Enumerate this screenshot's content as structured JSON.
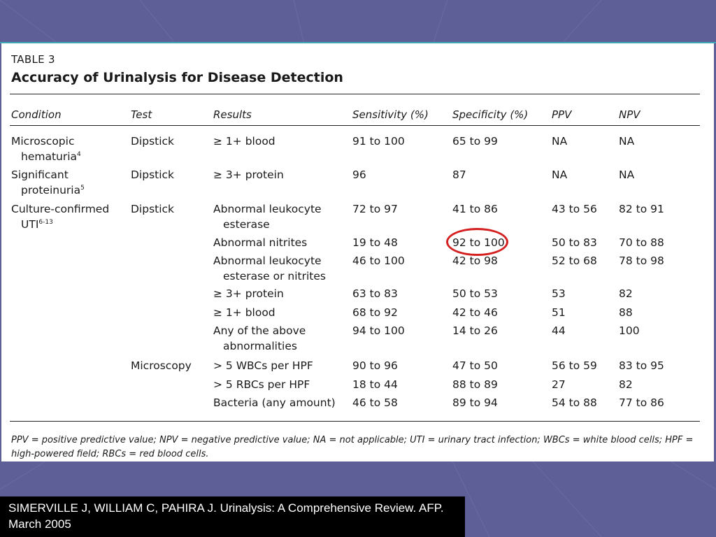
{
  "table": {
    "label": "TABLE 3",
    "title": "Accuracy of Urinalysis for Disease Detection",
    "headers": {
      "condition": "Condition",
      "test": "Test",
      "results": "Results",
      "sensitivity": "Sensitivity (%)",
      "specificity": "Specificity (%)",
      "ppv": "PPV",
      "npv": "NPV"
    },
    "rows": [
      {
        "condition": [
          "Microscopic",
          "hematuria"
        ],
        "condition_ref": "4",
        "test": "Dipstick",
        "results": [
          "≥ 1+ blood"
        ],
        "sensitivity": "91 to 100",
        "specificity": "65 to 99",
        "ppv": "NA",
        "npv": "NA"
      },
      {
        "condition": [
          "Significant",
          "proteinuria"
        ],
        "condition_ref": "5",
        "test": "Dipstick",
        "results": [
          "≥ 3+ protein"
        ],
        "sensitivity": "96",
        "specificity": "87",
        "ppv": "NA",
        "npv": "NA"
      },
      {
        "condition": [
          "Culture-confirmed",
          "UTI"
        ],
        "condition_ref": "6-13",
        "test": "Dipstick",
        "results": [
          "Abnormal leukocyte",
          "esterase"
        ],
        "sensitivity": "72 to 97",
        "specificity": "41 to 86",
        "ppv": "43 to 56",
        "npv": "82 to 91"
      },
      {
        "condition": [],
        "test": "",
        "results": [
          "Abnormal nitrites"
        ],
        "sensitivity": "19 to 48",
        "specificity": "92 to 100",
        "ppv": "50 to 83",
        "npv": "70 to 88"
      },
      {
        "condition": [],
        "test": "",
        "results": [
          "Abnormal leukocyte",
          "esterase or nitrites"
        ],
        "sensitivity": "46 to 100",
        "specificity": "42 to 98",
        "ppv": "52 to 68",
        "npv": "78 to 98"
      },
      {
        "condition": [],
        "test": "",
        "results": [
          "≥ 3+ protein"
        ],
        "sensitivity": "63 to 83",
        "specificity": "50 to 53",
        "ppv": "53",
        "npv": "82"
      },
      {
        "condition": [],
        "test": "",
        "results": [
          "≥ 1+ blood"
        ],
        "sensitivity": "68 to 92",
        "specificity": "42 to 46",
        "ppv": "51",
        "npv": "88"
      },
      {
        "condition": [],
        "test": "",
        "results": [
          "Any of the above",
          "abnormalities"
        ],
        "sensitivity": "94 to 100",
        "specificity": "14 to 26",
        "ppv": "44",
        "npv": "100"
      },
      {
        "condition": [],
        "test": "Microscopy",
        "results": [
          "> 5 WBCs per HPF"
        ],
        "sensitivity": "90 to 96",
        "specificity": "47 to 50",
        "ppv": "56 to 59",
        "npv": "83 to 95"
      },
      {
        "condition": [],
        "test": "",
        "results": [
          "> 5 RBCs per HPF"
        ],
        "sensitivity": "18 to 44",
        "specificity": "88 to 89",
        "ppv": "27",
        "npv": "82"
      },
      {
        "condition": [],
        "test": "",
        "results": [
          "Bacteria (any amount)"
        ],
        "sensitivity": "46 to 58",
        "specificity": "89 to 94",
        "ppv": "54 to 88",
        "npv": "77 to 86"
      }
    ],
    "footnote": "PPV = positive predictive value; NPV = negative predictive value; NA = not applicable; UTI = urinary tract infection; WBCs = white blood cells; HPF = high-powered field; RBCs = red blood cells."
  },
  "citation": "SIMERVILLE J, WILLIAM C,  PAHIRA J. Urinalysis: A Comprehensive Review. AFP. March 2005",
  "colors": {
    "background": "#5f5f98",
    "highlight_ring": "#d42020",
    "citation_bg": "#000000"
  }
}
